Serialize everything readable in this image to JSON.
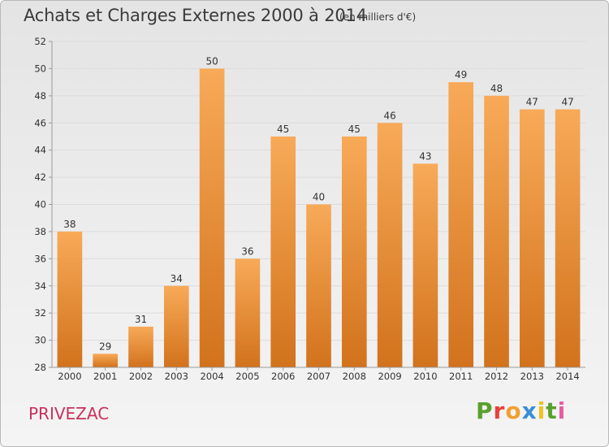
{
  "header": {
    "title": "Achats et Charges Externes 2000 à 2014",
    "subtitle": "(en milliers d'€)"
  },
  "commune": "PRIVEZAC",
  "logo": {
    "text": "Proxiti",
    "letter_colors": [
      "#5aa02c",
      "#e8403c",
      "#f0a030",
      "#3a8fd6",
      "#f0c020",
      "#5aa02c",
      "#e85aa0"
    ]
  },
  "colors": {
    "bar_light": "#f8aa58",
    "bar_dark": "#d2721c",
    "gridline": "#dcdcdc",
    "axis": "#9a9a9a"
  },
  "chart_data": {
    "type": "bar",
    "title": "Achats et Charges Externes 2000 à 2014",
    "categories": [
      "2000",
      "2001",
      "2002",
      "2003",
      "2004",
      "2005",
      "2006",
      "2007",
      "2008",
      "2009",
      "2010",
      "2011",
      "2012",
      "2013",
      "2014"
    ],
    "values": [
      38,
      29,
      31,
      34,
      50,
      36,
      45,
      40,
      45,
      46,
      43,
      49,
      48,
      47,
      47
    ],
    "ylim": [
      28,
      52
    ],
    "yticks": [
      28,
      30,
      32,
      34,
      36,
      38,
      40,
      42,
      44,
      46,
      48,
      50,
      52
    ],
    "grid": true,
    "data_labels": true
  }
}
